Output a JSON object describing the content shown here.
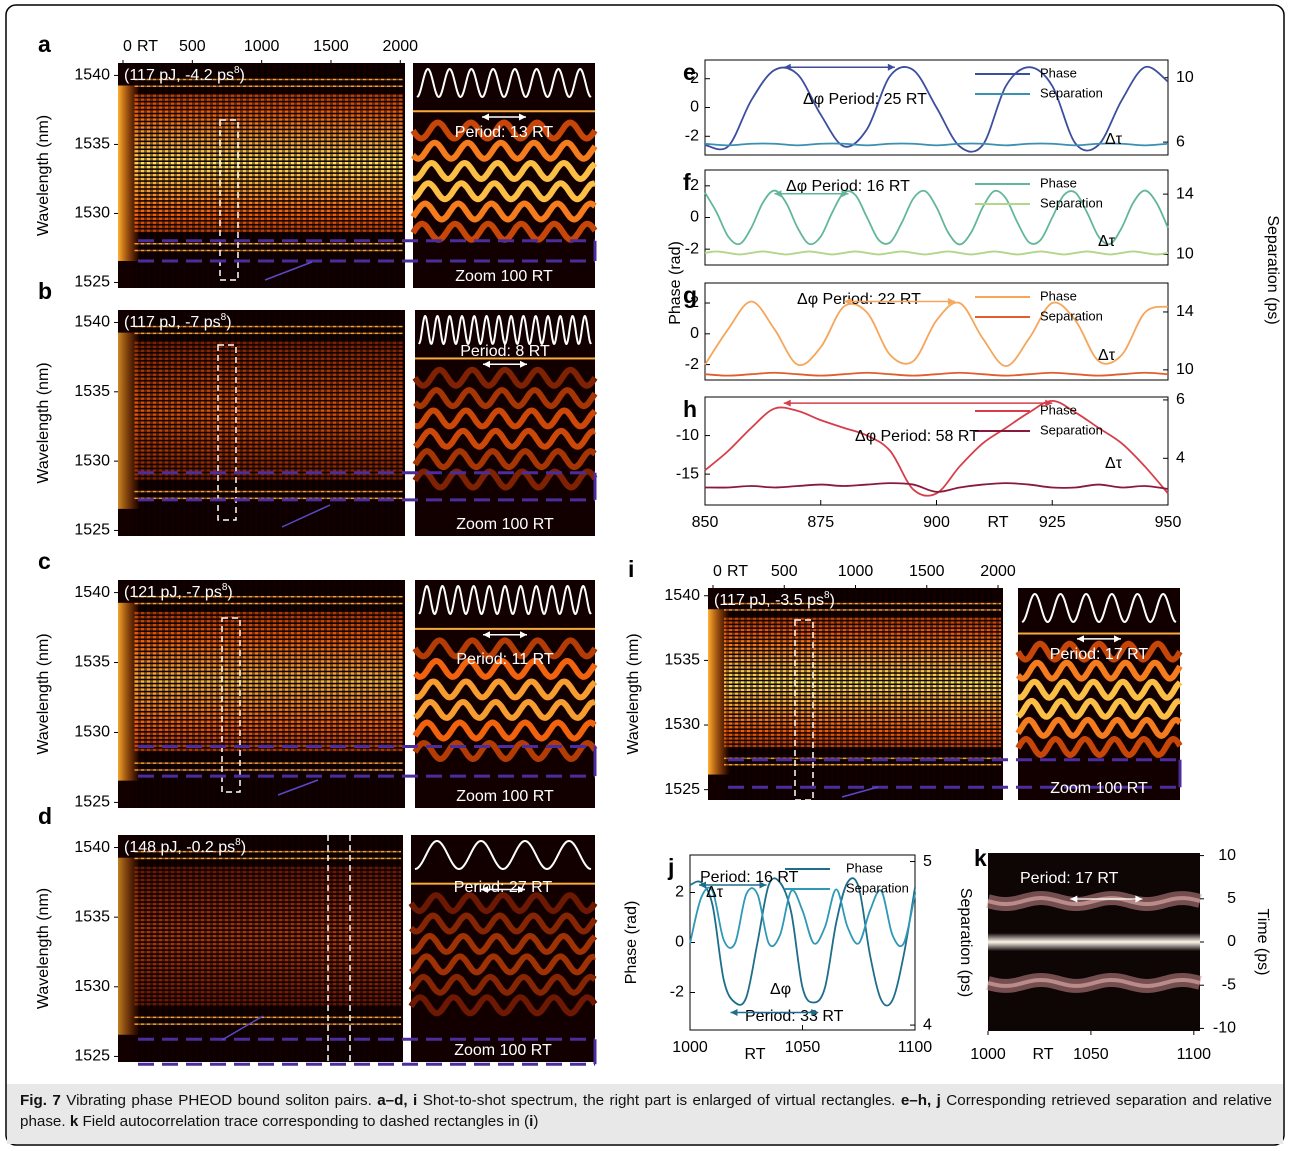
{
  "caption": [
    {
      "text": "Fig. 7",
      "bold": true
    },
    {
      "text": " Vibrating phase PHEOD bound soliton pairs. ",
      "bold": false
    },
    {
      "text": "a–d, i",
      "bold": true
    },
    {
      "text": " Shot-to-shot spectrum, the right part is enlarged of virtual rectangles. ",
      "bold": false
    },
    {
      "text": "e–h, j",
      "bold": true
    },
    {
      "text": " Corresponding retrieved separation and relative phase. ",
      "bold": false
    },
    {
      "text": "k",
      "bold": true
    },
    {
      "text": " Field autocorrelation trace corresponding to dashed rectangles in (",
      "bold": false
    },
    {
      "text": "i",
      "bold": true
    },
    {
      "text": ")",
      "bold": false
    }
  ],
  "efgh_axes": {
    "ylabel": "Phase (rad)",
    "y2label": "Separation (ps)"
  },
  "panels": [
    {
      "type": "spectrum",
      "label": "a",
      "xlim": [
        0,
        2070
      ],
      "xticks": [
        0,
        500,
        1000,
        1500,
        2000
      ],
      "xlabel": "RT",
      "ylabel": "Wavelength (nm)",
      "ylim": [
        1524.6,
        1540.9
      ],
      "yticks": [
        1540,
        1535,
        1530,
        1525
      ],
      "params": "(117 pJ, -4.2 ps",
      "params_sup": "8",
      "params_end": ")",
      "period": "Period: 13 RT",
      "zoom": "Zoom 100 RT"
    },
    {
      "type": "spectrum",
      "label": "b",
      "ylabel": "Wavelength (nm)",
      "ylim": [
        1524.6,
        1540.9
      ],
      "yticks": [
        1540,
        1535,
        1530,
        1525
      ],
      "params": "(117 pJ, -7 ps",
      "params_sup": "8",
      "params_end": ")",
      "period": "Period: 8 RT",
      "zoom": "Zoom 100 RT"
    },
    {
      "type": "spectrum",
      "label": "c",
      "ylabel": "Wavelength (nm)",
      "ylim": [
        1524.6,
        1540.9
      ],
      "yticks": [
        1540,
        1535,
        1530,
        1525
      ],
      "params": "(121 pJ, -7 ps",
      "params_sup": "8",
      "params_end": ")",
      "period": "Period: 11 RT",
      "zoom": "Zoom 100 RT"
    },
    {
      "type": "spectrum",
      "label": "d",
      "ylabel": "Wavelength (nm)",
      "ylim": [
        1524.6,
        1540.9
      ],
      "yticks": [
        1540,
        1535,
        1530,
        1525
      ],
      "params": "(148 pJ, -0.2 ps",
      "params_sup": "8",
      "params_end": ")",
      "period": "Period: 27 RT",
      "zoom": "Zoom 100 RT"
    },
    {
      "type": "spectrum",
      "label": "i",
      "xlim": [
        0,
        2070
      ],
      "xticks": [
        0,
        500,
        1000,
        1500,
        2000
      ],
      "xlabel": "RT",
      "ylabel": "Wavelength (nm)",
      "ylim": [
        1524.2,
        1540.6
      ],
      "yticks": [
        1540,
        1535,
        1530,
        1525
      ],
      "params": "(117 pJ, -3.5 ps",
      "params_sup": "8",
      "params_end": ")",
      "period": "Period: 17 RT",
      "zoom": "Zoom 100 RT"
    },
    {
      "type": "phase",
      "label": "e",
      "xlim": [
        850,
        950
      ],
      "ylim": [
        -3.3,
        3.3
      ],
      "yticks": [
        2,
        0,
        -2
      ],
      "y2lim": [
        5.2,
        11.1
      ],
      "y2ticks": [
        10,
        6
      ],
      "x": [
        850,
        855,
        860,
        865,
        870,
        875,
        880,
        885,
        890,
        895,
        900,
        905,
        910,
        915,
        920,
        925,
        930,
        935,
        940,
        945,
        950
      ],
      "series": [
        {
          "name": "Phase",
          "color": "#3c4e9e",
          "values": [
            -2.6,
            -2.7,
            0.5,
            2.6,
            2.3,
            -0.5,
            -2.7,
            -1.5,
            2.2,
            2.6,
            0,
            -2.7,
            -2.6,
            1.5,
            2.8,
            1.5,
            -2.5,
            -2.6,
            0.5,
            2.8,
            1.8
          ]
        },
        {
          "name": "Separation",
          "color": "#3a8fb2",
          "axis": "y2",
          "values": [
            5.9,
            5.8,
            5.9,
            5.9,
            5.8,
            5.9,
            5.9,
            5.8,
            5.9,
            5.9,
            5.8,
            5.9,
            5.9,
            5.8,
            5.9,
            5.9,
            5.8,
            5.9,
            5.9,
            5.8,
            5.9
          ]
        }
      ],
      "annotations": [
        "Δφ Period: 25 RT",
        "Δτ"
      ]
    },
    {
      "type": "phase",
      "label": "f",
      "xlim": [
        850,
        950
      ],
      "ylim": [
        -3,
        3
      ],
      "yticks": [
        2,
        0,
        -2
      ],
      "y2lim": [
        9.3,
        15.6
      ],
      "y2ticks": [
        14,
        10
      ],
      "x": [
        850,
        852.5,
        855,
        857.5,
        860,
        862.5,
        865,
        867.5,
        870,
        872.5,
        875,
        877.5,
        880,
        882.5,
        885,
        887.5,
        890,
        892.5,
        895,
        897.5,
        900,
        902.5,
        905,
        907.5,
        910,
        912.5,
        915,
        917.5,
        920,
        922.5,
        925,
        927.5,
        930,
        932.5,
        935,
        937.5,
        940,
        942.5,
        945,
        947.5,
        950
      ],
      "series": [
        {
          "name": "Phase",
          "color": "#62b798",
          "values": [
            1.57,
            0.33,
            -1.2,
            -1.67,
            -0.65,
            0.94,
            1.7,
            0.94,
            -0.65,
            -1.67,
            -1.2,
            0.33,
            1.57,
            1.41,
            0,
            -1.41,
            -1.57,
            -0.33,
            1.2,
            1.67,
            0.65,
            -0.94,
            -1.7,
            -0.94,
            0.65,
            1.67,
            1.2,
            -0.33,
            -1.57,
            -1.41,
            0,
            1.41,
            1.57,
            0.33,
            -1.2,
            -1.67,
            -0.65,
            0.94,
            1.7,
            0.94,
            -0.65
          ]
        },
        {
          "name": "Separation",
          "color": "#b3d68a",
          "axis": "y2",
          "values": [
            10.1,
            10.2,
            10.1,
            10.0,
            10.1,
            10.2,
            10.1,
            10.0,
            10.1,
            10.2,
            10.1,
            10.0,
            10.1,
            10.2,
            10.1,
            10.0,
            10.1,
            10.2,
            10.1,
            10.0,
            10.1,
            10.2,
            10.1,
            10.0,
            10.1,
            10.2,
            10.1,
            10.0,
            10.1,
            10.2,
            10.1,
            10.0,
            10.1,
            10.2,
            10.1,
            10.0,
            10.1,
            10.2,
            10.1,
            10.0,
            10.1
          ]
        }
      ],
      "annotations": [
        "Δφ Period: 16 RT",
        "Δτ"
      ]
    },
    {
      "type": "phase",
      "label": "g",
      "xlim": [
        850,
        950
      ],
      "ylim": [
        -3,
        3.3
      ],
      "yticks": [
        2,
        0,
        -2
      ],
      "y2lim": [
        9.3,
        16
      ],
      "y2ticks": [
        14,
        10
      ],
      "x": [
        850,
        855,
        860,
        865,
        870,
        875,
        880,
        885,
        890,
        895,
        900,
        905,
        910,
        915,
        920,
        925,
        930,
        935,
        940,
        945,
        950
      ],
      "series": [
        {
          "name": "Phase",
          "color": "#f5a65b",
          "values": [
            -2.0,
            0.3,
            2.1,
            0.3,
            -2.0,
            -0.87,
            1.77,
            1.38,
            -1.38,
            -1.77,
            0.87,
            2.0,
            -0.3,
            -2.1,
            -0.3,
            2.0,
            0.87,
            -1.77,
            -1.38,
            1.38,
            1.77
          ]
        },
        {
          "name": "Separation",
          "color": "#e05e2c",
          "axis": "y2",
          "values": [
            9.7,
            9.6,
            9.7,
            9.8,
            9.7,
            9.6,
            9.7,
            9.8,
            9.7,
            9.6,
            9.7,
            9.8,
            9.7,
            9.6,
            9.7,
            9.8,
            9.7,
            9.6,
            9.7,
            9.8,
            9.7
          ]
        }
      ],
      "annotations": [
        "Δφ Period: 22 RT",
        "Δτ"
      ]
    },
    {
      "type": "phase",
      "label": "h",
      "xlim": [
        850,
        950
      ],
      "ylim": [
        -19,
        -5
      ],
      "yticks": [
        -10,
        -15
      ],
      "y2lim": [
        2.4,
        6.1
      ],
      "y2ticks": [
        6,
        4
      ],
      "xticks": [
        850,
        875,
        900,
        925,
        950
      ],
      "xlabel": "RT",
      "x": [
        850,
        855,
        860,
        865,
        870,
        875,
        880,
        885,
        890,
        895,
        900,
        905,
        910,
        915,
        920,
        925,
        930,
        935,
        940,
        945,
        950
      ],
      "series": [
        {
          "name": "Phase",
          "color": "#d63f4a",
          "values": [
            -14.5,
            -12,
            -9,
            -6.5,
            -6.8,
            -8,
            -9,
            -10,
            -12,
            -17,
            -17.5,
            -14,
            -11,
            -9,
            -7,
            -5.5,
            -7,
            -9,
            -11,
            -14,
            -17.5
          ]
        },
        {
          "name": "Separation",
          "color": "#8a1a3c",
          "axis": "y2",
          "values": [
            3.0,
            3.0,
            3.05,
            3.0,
            3.05,
            3.1,
            3.05,
            3.1,
            3.15,
            3.1,
            2.85,
            3.0,
            3.1,
            3.15,
            3.1,
            3.0,
            3.0,
            3.1,
            3.0,
            3.05,
            2.95
          ]
        }
      ],
      "annotations": [
        "Δφ Period: 58 RT",
        "Δτ"
      ]
    },
    {
      "type": "phase",
      "label": "j",
      "xlim": [
        1000,
        1100
      ],
      "xticks": [
        1000,
        1050,
        1100
      ],
      "xlabel": "RT",
      "ylabel": "Phase (rad)",
      "y2label": "Separation (ps)",
      "ylim": [
        -3.5,
        3.5
      ],
      "yticks": [
        2,
        0,
        -2
      ],
      "y2lim": [
        3.97,
        5.04
      ],
      "y2ticks": [
        5,
        4
      ],
      "x": [
        1000,
        1005,
        1010,
        1015,
        1020,
        1025,
        1030,
        1035,
        1040,
        1045,
        1050,
        1055,
        1060,
        1065,
        1070,
        1075,
        1080,
        1085,
        1090,
        1095,
        1100
      ],
      "series": [
        {
          "name": "Phase",
          "color": "#1e6d8b",
          "values": [
            2.3,
            2.4,
            1.5,
            -1.5,
            -2.4,
            -2.2,
            0,
            2.3,
            2.4,
            1.2,
            -1.8,
            -2.4,
            -1.8,
            0.8,
            2.4,
            2.2,
            -0.5,
            -2.3,
            -2.3,
            -0.5,
            2.2
          ]
        },
        {
          "name": "Separation",
          "color": "#2f98b6",
          "axis": "y2",
          "values": [
            4.5,
            4.78,
            4.82,
            4.52,
            4.5,
            4.8,
            4.8,
            4.5,
            4.55,
            4.82,
            4.7,
            4.5,
            4.6,
            4.83,
            4.6,
            4.5,
            4.7,
            4.82,
            4.55,
            4.5,
            4.8
          ]
        }
      ],
      "annotations": [
        "Period: 16 RT",
        "Δτ",
        "Δφ",
        "Period: 33 RT"
      ]
    },
    {
      "type": "autocorrelation",
      "label": "k",
      "xlim": [
        1000,
        1103
      ],
      "xticks": [
        1000,
        1050,
        1100
      ],
      "xlabel": "RT",
      "ylim": [
        -10.3,
        10.3
      ],
      "yticks": [
        10,
        5,
        0,
        -5,
        -10
      ],
      "ylabel": "Time (ps)",
      "annotations": [
        "Period: 17 RT"
      ]
    }
  ]
}
